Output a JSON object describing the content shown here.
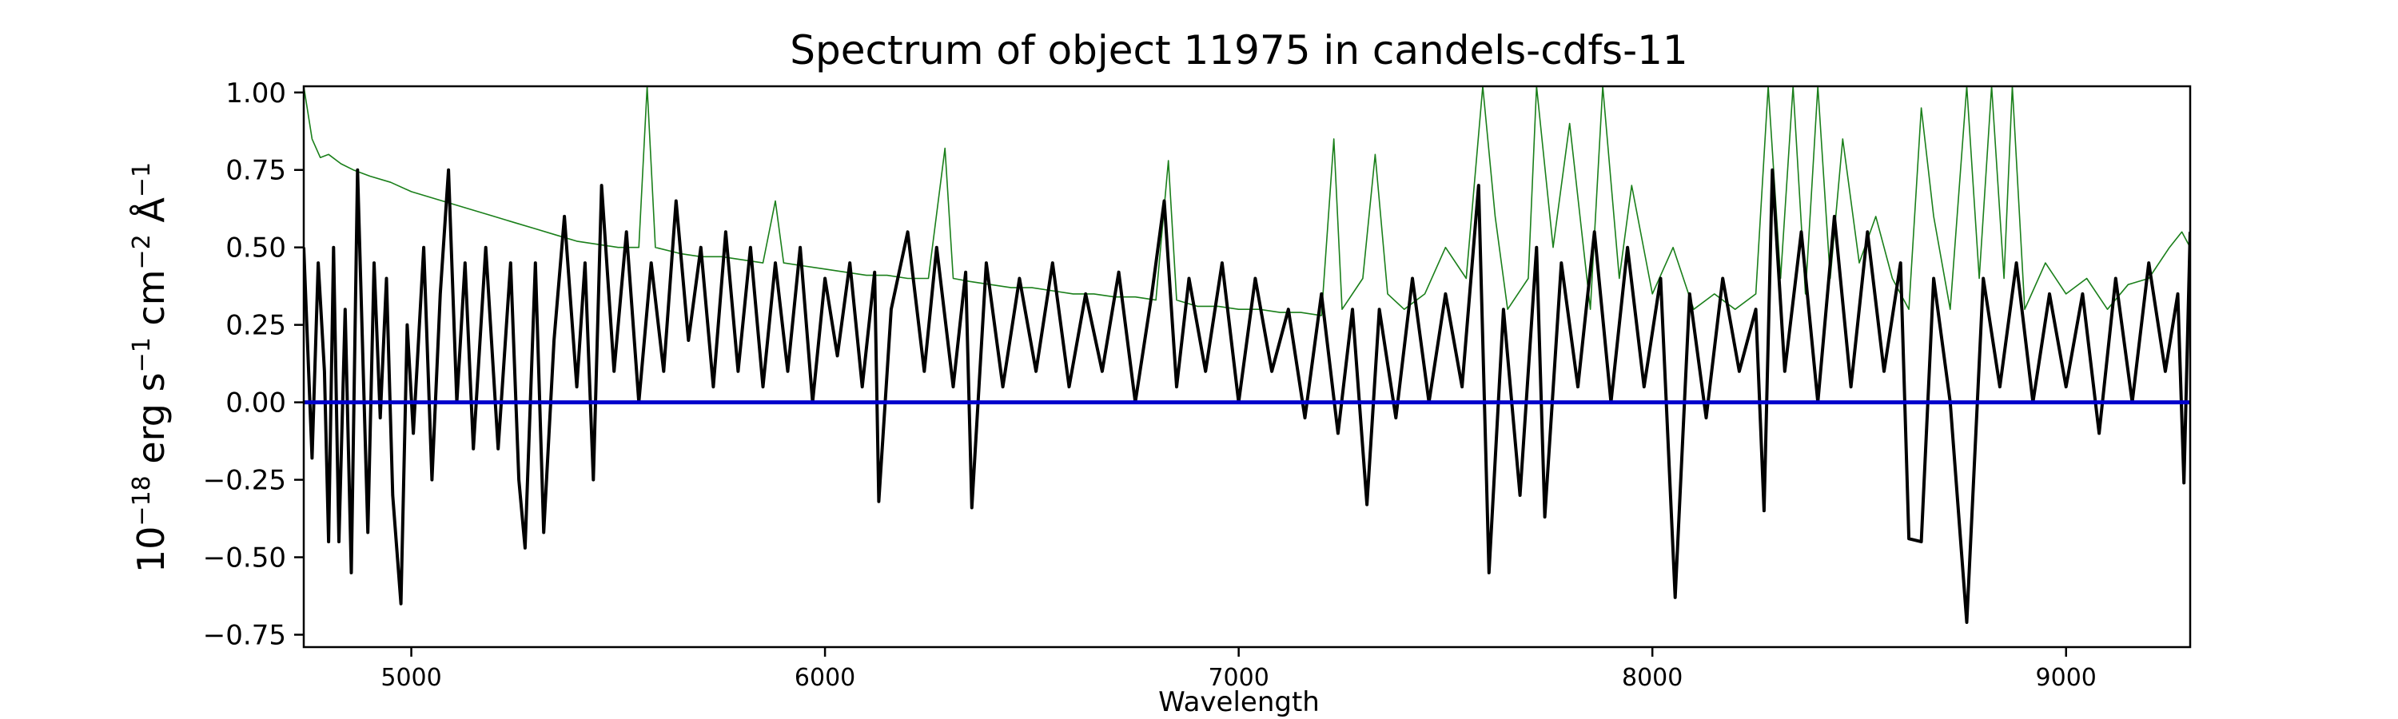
{
  "chart_data": {
    "type": "line",
    "title": "Spectrum of object 11975 in candels-cdfs-11",
    "xlabel": "Wavelength",
    "ylabel": {
      "base": "10",
      "exp1": "−18",
      "part1": " erg s",
      "exp2": "−1",
      "part2": " cm",
      "exp3": "−2",
      "part3": " Å",
      "exp4": "−1"
    },
    "xlim": [
      4740,
      9300
    ],
    "ylim": [
      -0.79,
      1.02
    ],
    "x_ticks": [
      5000,
      6000,
      7000,
      8000,
      9000
    ],
    "x_tick_labels": [
      "5000",
      "6000",
      "7000",
      "8000",
      "9000"
    ],
    "y_ticks": [
      1.0,
      0.75,
      0.5,
      0.25,
      0.0,
      -0.25,
      -0.5,
      -0.75
    ],
    "y_tick_labels": [
      "1.00",
      "0.75",
      "0.50",
      "0.25",
      "0.00",
      "−0.25",
      "−0.50",
      "−0.75"
    ],
    "grid": false,
    "series": [
      {
        "role": "flux",
        "color": "#000000",
        "points": [
          [
            4740,
            0.5
          ],
          [
            4760,
            -0.18
          ],
          [
            4775,
            0.45
          ],
          [
            4790,
            0.1
          ],
          [
            4800,
            -0.45
          ],
          [
            4812,
            0.5
          ],
          [
            4825,
            -0.45
          ],
          [
            4840,
            0.3
          ],
          [
            4855,
            -0.55
          ],
          [
            4870,
            0.75
          ],
          [
            4885,
            0.05
          ],
          [
            4895,
            -0.42
          ],
          [
            4910,
            0.45
          ],
          [
            4925,
            -0.05
          ],
          [
            4940,
            0.4
          ],
          [
            4955,
            -0.3
          ],
          [
            4975,
            -0.65
          ],
          [
            4990,
            0.25
          ],
          [
            5005,
            -0.1
          ],
          [
            5030,
            0.5
          ],
          [
            5050,
            -0.25
          ],
          [
            5070,
            0.35
          ],
          [
            5090,
            0.75
          ],
          [
            5110,
            0.0
          ],
          [
            5130,
            0.45
          ],
          [
            5150,
            -0.15
          ],
          [
            5180,
            0.5
          ],
          [
            5210,
            -0.15
          ],
          [
            5240,
            0.45
          ],
          [
            5260,
            -0.25
          ],
          [
            5275,
            -0.47
          ],
          [
            5300,
            0.45
          ],
          [
            5320,
            -0.42
          ],
          [
            5345,
            0.2
          ],
          [
            5370,
            0.6
          ],
          [
            5400,
            0.05
          ],
          [
            5420,
            0.45
          ],
          [
            5440,
            -0.25
          ],
          [
            5460,
            0.7
          ],
          [
            5490,
            0.1
          ],
          [
            5520,
            0.55
          ],
          [
            5550,
            0.0
          ],
          [
            5580,
            0.45
          ],
          [
            5610,
            0.1
          ],
          [
            5640,
            0.65
          ],
          [
            5670,
            0.2
          ],
          [
            5700,
            0.5
          ],
          [
            5730,
            0.05
          ],
          [
            5760,
            0.55
          ],
          [
            5790,
            0.1
          ],
          [
            5820,
            0.5
          ],
          [
            5850,
            0.05
          ],
          [
            5880,
            0.45
          ],
          [
            5910,
            0.1
          ],
          [
            5940,
            0.5
          ],
          [
            5970,
            0.0
          ],
          [
            6000,
            0.4
          ],
          [
            6030,
            0.15
          ],
          [
            6060,
            0.45
          ],
          [
            6090,
            0.05
          ],
          [
            6120,
            0.42
          ],
          [
            6130,
            -0.32
          ],
          [
            6160,
            0.3
          ],
          [
            6200,
            0.55
          ],
          [
            6240,
            0.1
          ],
          [
            6270,
            0.5
          ],
          [
            6310,
            0.05
          ],
          [
            6340,
            0.42
          ],
          [
            6355,
            -0.34
          ],
          [
            6390,
            0.45
          ],
          [
            6430,
            0.05
          ],
          [
            6470,
            0.4
          ],
          [
            6510,
            0.1
          ],
          [
            6550,
            0.45
          ],
          [
            6590,
            0.05
          ],
          [
            6630,
            0.35
          ],
          [
            6670,
            0.1
          ],
          [
            6710,
            0.42
          ],
          [
            6750,
            0.0
          ],
          [
            6790,
            0.35
          ],
          [
            6820,
            0.65
          ],
          [
            6850,
            0.05
          ],
          [
            6880,
            0.4
          ],
          [
            6920,
            0.1
          ],
          [
            6960,
            0.45
          ],
          [
            7000,
            0.0
          ],
          [
            7040,
            0.4
          ],
          [
            7080,
            0.1
          ],
          [
            7120,
            0.3
          ],
          [
            7160,
            -0.05
          ],
          [
            7200,
            0.35
          ],
          [
            7240,
            -0.1
          ],
          [
            7275,
            0.3
          ],
          [
            7310,
            -0.33
          ],
          [
            7340,
            0.3
          ],
          [
            7380,
            -0.05
          ],
          [
            7420,
            0.4
          ],
          [
            7460,
            0.0
          ],
          [
            7500,
            0.35
          ],
          [
            7540,
            0.05
          ],
          [
            7580,
            0.7
          ],
          [
            7605,
            -0.55
          ],
          [
            7640,
            0.3
          ],
          [
            7680,
            -0.3
          ],
          [
            7720,
            0.5
          ],
          [
            7740,
            -0.37
          ],
          [
            7780,
            0.45
          ],
          [
            7820,
            0.05
          ],
          [
            7860,
            0.55
          ],
          [
            7900,
            0.0
          ],
          [
            7940,
            0.5
          ],
          [
            7980,
            0.05
          ],
          [
            8020,
            0.4
          ],
          [
            8055,
            -0.63
          ],
          [
            8090,
            0.35
          ],
          [
            8130,
            -0.05
          ],
          [
            8170,
            0.4
          ],
          [
            8210,
            0.1
          ],
          [
            8250,
            0.3
          ],
          [
            8270,
            -0.35
          ],
          [
            8290,
            0.75
          ],
          [
            8320,
            0.1
          ],
          [
            8360,
            0.55
          ],
          [
            8400,
            0.0
          ],
          [
            8440,
            0.6
          ],
          [
            8480,
            0.05
          ],
          [
            8520,
            0.55
          ],
          [
            8560,
            0.1
          ],
          [
            8600,
            0.45
          ],
          [
            8620,
            -0.44
          ],
          [
            8650,
            -0.45
          ],
          [
            8680,
            0.4
          ],
          [
            8720,
            0.0
          ],
          [
            8760,
            -0.71
          ],
          [
            8800,
            0.4
          ],
          [
            8840,
            0.05
          ],
          [
            8880,
            0.45
          ],
          [
            8920,
            0.0
          ],
          [
            8960,
            0.35
          ],
          [
            9000,
            0.05
          ],
          [
            9040,
            0.35
          ],
          [
            9080,
            -0.1
          ],
          [
            9120,
            0.4
          ],
          [
            9160,
            0.0
          ],
          [
            9200,
            0.45
          ],
          [
            9240,
            0.1
          ],
          [
            9270,
            0.35
          ],
          [
            9285,
            -0.26
          ],
          [
            9300,
            0.55
          ]
        ]
      },
      {
        "role": "error",
        "color": "#1a7f1a",
        "points": [
          [
            4740,
            1.02
          ],
          [
            4760,
            0.85
          ],
          [
            4780,
            0.79
          ],
          [
            4800,
            0.8
          ],
          [
            4830,
            0.77
          ],
          [
            4860,
            0.75
          ],
          [
            4900,
            0.73
          ],
          [
            4950,
            0.71
          ],
          [
            5000,
            0.68
          ],
          [
            5050,
            0.66
          ],
          [
            5100,
            0.64
          ],
          [
            5150,
            0.62
          ],
          [
            5200,
            0.6
          ],
          [
            5250,
            0.58
          ],
          [
            5300,
            0.56
          ],
          [
            5350,
            0.54
          ],
          [
            5400,
            0.52
          ],
          [
            5450,
            0.51
          ],
          [
            5500,
            0.5
          ],
          [
            5550,
            0.5
          ],
          [
            5570,
            1.02
          ],
          [
            5590,
            0.5
          ],
          [
            5650,
            0.48
          ],
          [
            5700,
            0.47
          ],
          [
            5750,
            0.47
          ],
          [
            5800,
            0.46
          ],
          [
            5850,
            0.45
          ],
          [
            5880,
            0.65
          ],
          [
            5900,
            0.45
          ],
          [
            5950,
            0.44
          ],
          [
            6000,
            0.43
          ],
          [
            6050,
            0.42
          ],
          [
            6100,
            0.41
          ],
          [
            6150,
            0.41
          ],
          [
            6200,
            0.4
          ],
          [
            6250,
            0.4
          ],
          [
            6290,
            0.82
          ],
          [
            6310,
            0.4
          ],
          [
            6350,
            0.39
          ],
          [
            6400,
            0.38
          ],
          [
            6450,
            0.37
          ],
          [
            6500,
            0.37
          ],
          [
            6550,
            0.36
          ],
          [
            6600,
            0.35
          ],
          [
            6650,
            0.35
          ],
          [
            6700,
            0.34
          ],
          [
            6750,
            0.34
          ],
          [
            6800,
            0.33
          ],
          [
            6830,
            0.78
          ],
          [
            6850,
            0.33
          ],
          [
            6900,
            0.31
          ],
          [
            6950,
            0.31
          ],
          [
            7000,
            0.3
          ],
          [
            7050,
            0.3
          ],
          [
            7100,
            0.29
          ],
          [
            7150,
            0.29
          ],
          [
            7200,
            0.28
          ],
          [
            7230,
            0.85
          ],
          [
            7250,
            0.3
          ],
          [
            7300,
            0.4
          ],
          [
            7330,
            0.8
          ],
          [
            7360,
            0.35
          ],
          [
            7400,
            0.3
          ],
          [
            7450,
            0.35
          ],
          [
            7500,
            0.5
          ],
          [
            7550,
            0.4
          ],
          [
            7590,
            1.02
          ],
          [
            7620,
            0.6
          ],
          [
            7650,
            0.3
          ],
          [
            7700,
            0.4
          ],
          [
            7720,
            1.02
          ],
          [
            7760,
            0.5
          ],
          [
            7800,
            0.9
          ],
          [
            7850,
            0.3
          ],
          [
            7880,
            1.02
          ],
          [
            7920,
            0.4
          ],
          [
            7950,
            0.7
          ],
          [
            8000,
            0.35
          ],
          [
            8050,
            0.5
          ],
          [
            8100,
            0.3
          ],
          [
            8150,
            0.35
          ],
          [
            8200,
            0.3
          ],
          [
            8250,
            0.35
          ],
          [
            8280,
            1.02
          ],
          [
            8310,
            0.4
          ],
          [
            8340,
            1.02
          ],
          [
            8370,
            0.35
          ],
          [
            8400,
            1.02
          ],
          [
            8430,
            0.4
          ],
          [
            8460,
            0.85
          ],
          [
            8500,
            0.45
          ],
          [
            8540,
            0.6
          ],
          [
            8580,
            0.4
          ],
          [
            8620,
            0.3
          ],
          [
            8650,
            0.95
          ],
          [
            8680,
            0.6
          ],
          [
            8720,
            0.3
          ],
          [
            8760,
            1.02
          ],
          [
            8790,
            0.4
          ],
          [
            8820,
            1.02
          ],
          [
            8850,
            0.4
          ],
          [
            8870,
            1.02
          ],
          [
            8900,
            0.3
          ],
          [
            8950,
            0.45
          ],
          [
            9000,
            0.35
          ],
          [
            9050,
            0.4
          ],
          [
            9100,
            0.3
          ],
          [
            9150,
            0.38
          ],
          [
            9200,
            0.4
          ],
          [
            9250,
            0.5
          ],
          [
            9280,
            0.55
          ],
          [
            9300,
            0.5
          ]
        ]
      },
      {
        "role": "zero",
        "color": "#0000cc",
        "points": [
          [
            4740,
            0.0
          ],
          [
            9300,
            0.0
          ]
        ]
      }
    ]
  }
}
